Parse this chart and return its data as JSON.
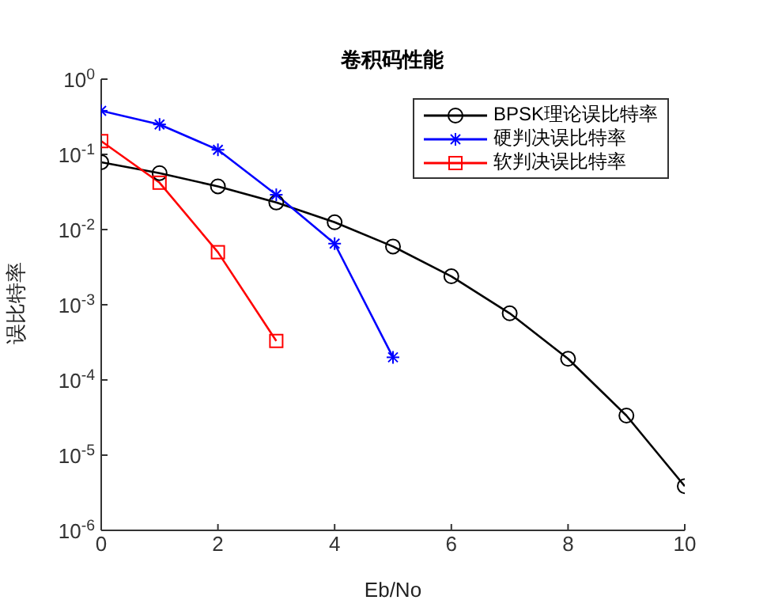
{
  "chart_data": {
    "type": "line",
    "title": "卷积码性能",
    "xlabel": "Eb/No",
    "ylabel": "误比特率",
    "x": [
      0,
      1,
      2,
      3,
      4,
      5,
      6,
      7,
      8,
      9,
      10
    ],
    "series": [
      {
        "name": "BPSK理论误比特率",
        "color": "#000000",
        "marker": "circle",
        "values": [
          0.0786,
          0.0563,
          0.0375,
          0.0229,
          0.0125,
          0.00595,
          0.00239,
          0.00077,
          0.000191,
          3.36e-05,
          3.87e-06
        ]
      },
      {
        "name": "硬判决误比特率",
        "color": "#0000ff",
        "marker": "cross",
        "values": [
          0.38,
          0.25,
          0.115,
          0.029,
          0.0065,
          0.0002,
          null,
          null,
          null,
          null,
          null
        ]
      },
      {
        "name": "软判决误比特率",
        "color": "#ff0000",
        "marker": "square",
        "values": [
          0.15,
          0.042,
          0.005,
          0.00033,
          null,
          null,
          null,
          null,
          null,
          null,
          null
        ]
      }
    ],
    "log": "y",
    "xlim": [
      0,
      10
    ],
    "xticks": [
      0,
      2,
      4,
      6,
      8,
      10
    ],
    "ylim": [
      1e-06,
      1
    ],
    "yticks": [
      {
        "value": 1e-06,
        "label": "10$^{-6}$"
      },
      {
        "value": 1e-05,
        "label": "10$^{-5}$"
      },
      {
        "value": 0.0001,
        "label": "10$^{-4}$"
      },
      {
        "value": 0.001,
        "label": "10$^{-3}$"
      },
      {
        "value": 0.01,
        "label": "10$^{-2}$"
      },
      {
        "value": 0.1,
        "label": "10$^{-1}$"
      },
      {
        "value": 1,
        "label": "10$^{0}$"
      }
    ],
    "grid": false,
    "legend": "top right",
    "line_style": "solid"
  }
}
